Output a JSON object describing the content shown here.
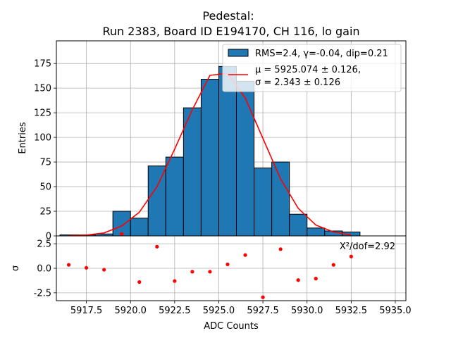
{
  "figure": {
    "title_line1": "Pedestal:",
    "title_line2": "Run 2383, Board ID E194170, CH 116, lo gain"
  },
  "chart_data": [
    {
      "type": "bar",
      "panel": "main",
      "title": "Pedestal:\nRun 2383, Board ID E194170, CH 116, lo gain",
      "xlabel": "ADC Counts",
      "ylabel": "Entries",
      "xlim": [
        5915.8,
        5935.6
      ],
      "ylim": [
        0,
        198
      ],
      "yticks": [
        0,
        25,
        50,
        75,
        100,
        125,
        150,
        175
      ],
      "grid": true,
      "legend_placement": "top-right",
      "histogram": {
        "name": "RMS=2.4, γ=-0.04, dip=0.21",
        "color": "#1f77b4",
        "bin_left_edges": [
          5916.0,
          5917.0,
          5918.0,
          5919.0,
          5920.0,
          5921.0,
          5922.0,
          5923.0,
          5924.0,
          5925.0,
          5926.0,
          5927.0,
          5928.0,
          5929.0,
          5930.0,
          5931.0,
          5932.0
        ],
        "bin_width": 1.0,
        "values": [
          1,
          1,
          2,
          25,
          18,
          71,
          80,
          130,
          159,
          172,
          157,
          69,
          75,
          22,
          8,
          5,
          4
        ]
      },
      "fit": {
        "name_line1": "μ = 5925.074 ± 0.126,",
        "name_line2": "σ = 2.343 ± 0.126",
        "color": "#ff0000",
        "x": [
          5916.5,
          5917.5,
          5918.5,
          5919.5,
          5920.5,
          5921.5,
          5922.5,
          5923.5,
          5924.5,
          5925.5,
          5926.5,
          5927.5,
          5928.5,
          5929.5,
          5930.5,
          5931.5,
          5932.5
        ],
        "y": [
          0.2,
          0.8,
          3,
          10,
          24,
          50,
          88,
          128,
          163,
          165,
          140,
          99,
          58,
          28,
          11,
          4,
          1
        ]
      }
    },
    {
      "type": "scatter",
      "panel": "residuals",
      "xlabel": "ADC Counts",
      "ylabel": "σ",
      "xlim": [
        5915.8,
        5935.6
      ],
      "ylim": [
        -3.3,
        3.3
      ],
      "xticks": [
        5917.5,
        5920.0,
        5922.5,
        5925.0,
        5927.5,
        5930.0,
        5932.5,
        5935.0
      ],
      "yticks": [
        -2.5,
        0.0,
        2.5
      ],
      "grid": true,
      "annotation": "X²/dof=2.92",
      "color": "#ff0000",
      "x": [
        5916.5,
        5917.5,
        5918.5,
        5919.5,
        5920.5,
        5921.5,
        5922.5,
        5923.5,
        5924.5,
        5925.5,
        5926.5,
        5927.5,
        5928.5,
        5929.5,
        5930.5,
        5931.5,
        5932.5
      ],
      "y": [
        0.35,
        0.05,
        -0.15,
        3.5,
        -1.4,
        2.2,
        -1.3,
        -0.35,
        -0.35,
        0.4,
        1.35,
        -2.95,
        1.95,
        -1.2,
        -1.05,
        0.35,
        1.2
      ]
    }
  ]
}
